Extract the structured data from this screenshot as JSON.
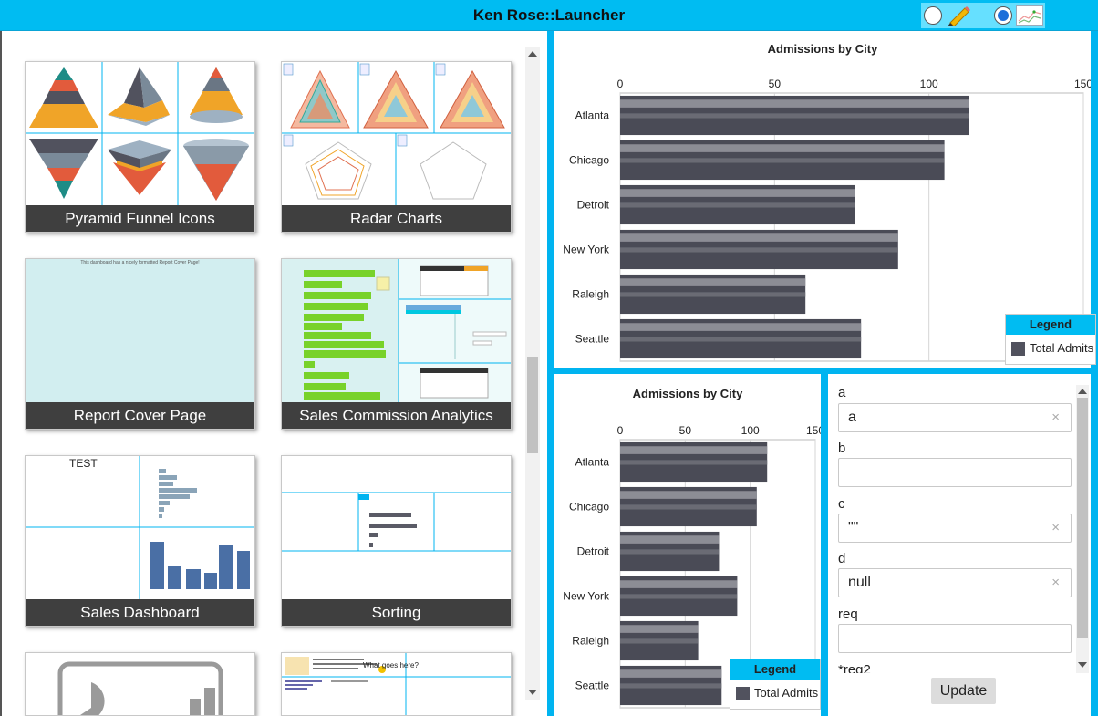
{
  "window": {
    "title": "Ken Rose::Launcher"
  },
  "tools": {
    "pencil": "pencil-icon",
    "chart": "line-chart-icon"
  },
  "tiles": [
    {
      "label": "Pyramid Funnel Icons",
      "thumb": "pyramid-funnel"
    },
    {
      "label": "Radar Charts",
      "thumb": "radar"
    },
    {
      "label": "Report Cover Page",
      "thumb": "cover",
      "thumb_text": "This dashboard has a nicely formatted Report Cover Page!"
    },
    {
      "label": "Sales Commission Analytics",
      "thumb": "sales-commission"
    },
    {
      "label": "Sales Dashboard",
      "thumb": "sales-dashboard",
      "thumb_text": "TEST"
    },
    {
      "label": "Sorting",
      "thumb": "sorting"
    },
    {
      "label": "",
      "thumb": "pie-icon"
    },
    {
      "label": "",
      "thumb": "what-goes-here",
      "thumb_text": "What goes here?"
    }
  ],
  "colors": {
    "accent": "#00bcf2",
    "bar": "#51525e",
    "caption_bg": "#3f3f3f"
  },
  "charts": {
    "top": {
      "title": "Admissions by City",
      "legend_title": "Legend",
      "legend_item": "Total Admits"
    },
    "bottom": {
      "title": "Admissions by City",
      "legend_title": "Legend",
      "legend_item": "Total Admits"
    }
  },
  "chart_data": [
    {
      "type": "bar",
      "orientation": "horizontal",
      "title": "Admissions by City",
      "categories": [
        "Atlanta",
        "Chicago",
        "Detroit",
        "New York",
        "Raleigh",
        "Seattle"
      ],
      "series": [
        {
          "name": "Total Admits",
          "values": [
            113,
            105,
            76,
            90,
            60,
            78
          ]
        }
      ],
      "xlim": [
        0,
        150
      ],
      "xticks": [
        0,
        50,
        100,
        150
      ],
      "grid": true,
      "legend_position": "bottom-right"
    },
    {
      "type": "bar",
      "orientation": "horizontal",
      "title": "Admissions by City",
      "categories": [
        "Atlanta",
        "Chicago",
        "Detroit",
        "New York",
        "Raleigh",
        "Seattle"
      ],
      "series": [
        {
          "name": "Total Admits",
          "values": [
            113,
            105,
            76,
            90,
            60,
            78
          ]
        }
      ],
      "xlim": [
        0,
        150
      ],
      "xticks": [
        0,
        50,
        100,
        150
      ],
      "grid": true,
      "legend_position": "bottom-right"
    }
  ],
  "form": {
    "fields": [
      {
        "label": "a",
        "value": "a",
        "clearable": true
      },
      {
        "label": "b",
        "value": "",
        "clearable": false
      },
      {
        "label": "c",
        "value": "\"\"",
        "clearable": true
      },
      {
        "label": "d",
        "value": "null",
        "clearable": true
      },
      {
        "label": "req",
        "value": "",
        "clearable": false
      },
      {
        "label": "*req2"
      }
    ],
    "clear_glyph": "×",
    "update_label": "Update"
  }
}
